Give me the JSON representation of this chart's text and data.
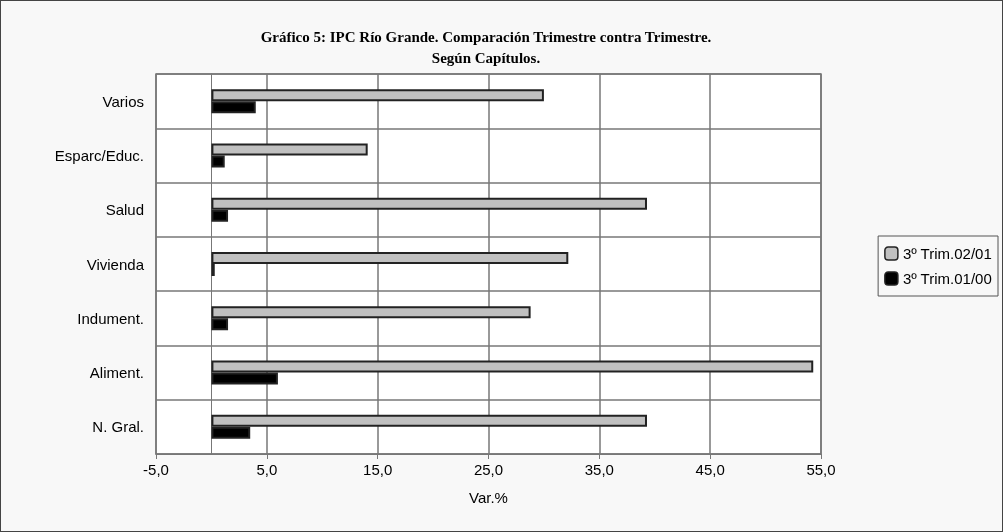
{
  "chart_data": {
    "type": "bar",
    "orientation": "horizontal",
    "title": "Gráfico 5: IPC Río Grande. Comparación Trimestre contra Trimestre.\nSegún Capítulos.",
    "xlabel": "Var.%",
    "categories": [
      "Varios",
      "Esparc/Educ.",
      "Salud",
      "Vivienda",
      "Indument.",
      "Aliment.",
      "N. Gral."
    ],
    "series": [
      {
        "name": "3º Trim.02/01",
        "color": "#c0c0c0",
        "values": [
          30.0,
          14.1,
          39.3,
          32.2,
          28.8,
          54.3,
          39.3
        ]
      },
      {
        "name": "3º Trim.01/00",
        "color": "#000000",
        "values": [
          4.0,
          1.2,
          1.5,
          0.3,
          1.5,
          6.0,
          3.5
        ]
      }
    ],
    "xlim": [
      -5,
      55
    ],
    "xticks": [
      {
        "value": -5,
        "label": "-5,0"
      },
      {
        "value": 5,
        "label": "5,0"
      },
      {
        "value": 15,
        "label": "15,0"
      },
      {
        "value": 25,
        "label": "25,0"
      },
      {
        "value": 35,
        "label": "35,0"
      },
      {
        "value": 45,
        "label": "45,0"
      },
      {
        "value": 55,
        "label": "55,0"
      }
    ],
    "grid": true,
    "legend": "right"
  }
}
